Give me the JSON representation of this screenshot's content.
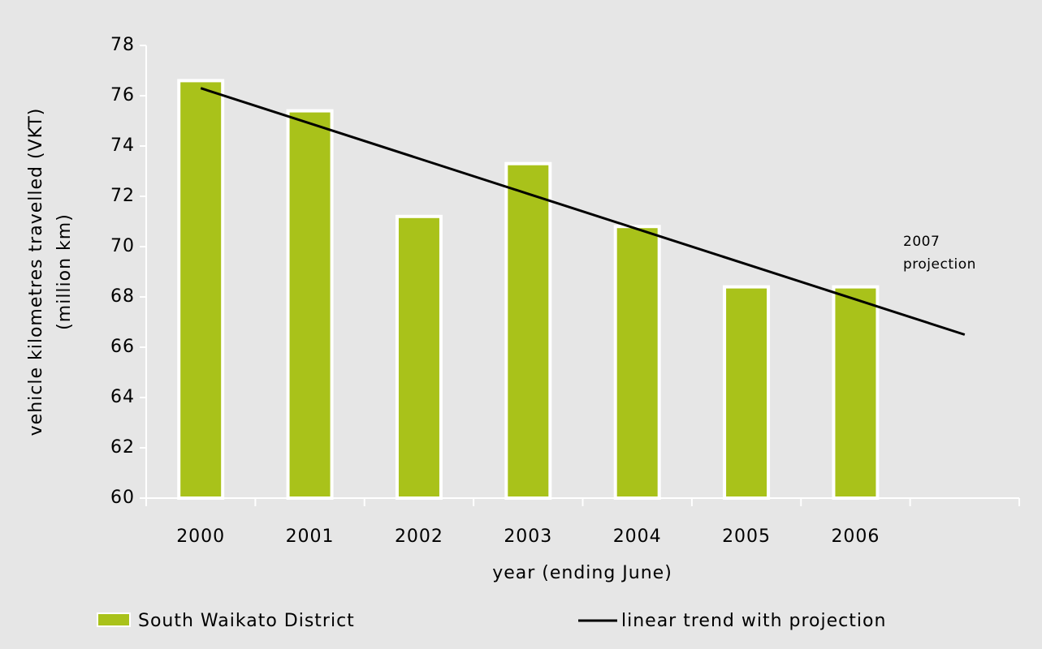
{
  "chart_data": {
    "type": "bar",
    "y_label": [
      "vehicle kilometres travelled (VKT)",
      "(million km)"
    ],
    "x_label": "year (ending June)",
    "categories": [
      "2000",
      "2001",
      "2002",
      "2003",
      "2004",
      "2005",
      "2006",
      null
    ],
    "series": [
      {
        "name": "South Waikato District",
        "type": "bar",
        "color": "#a9c21a",
        "values": [
          76.6,
          75.4,
          71.2,
          73.3,
          70.8,
          68.4,
          68.4,
          null
        ]
      },
      {
        "name": "linear trend with projection",
        "type": "line",
        "color": "#000000",
        "values": [
          76.3,
          74.9,
          73.5,
          72.1,
          70.7,
          69.3,
          67.9,
          66.5
        ]
      }
    ],
    "annotation": [
      "2007",
      "projection"
    ],
    "ylim": [
      60,
      78
    ],
    "yticks": [
      60,
      62,
      64,
      66,
      68,
      70,
      72,
      74,
      76,
      78
    ]
  }
}
